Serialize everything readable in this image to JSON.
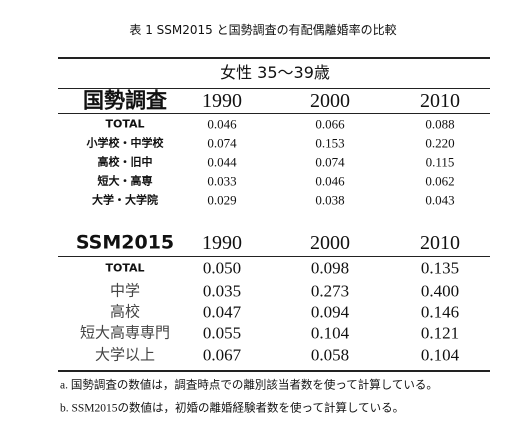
{
  "caption": "表 1 SSM2015 と国勢調査の有配偶離婚率の比較",
  "table": {
    "subheader": "女性 35〜39歳",
    "sections": [
      {
        "title": "国勢調査",
        "columns": [
          "1990",
          "2000",
          "2010"
        ],
        "rows": [
          [
            "TOTAL",
            "0.046",
            "0.066",
            "0.088"
          ],
          [
            "小学校・中学校",
            "0.074",
            "0.153",
            "0.220"
          ],
          [
            "高校・旧中",
            "0.044",
            "0.074",
            "0.115"
          ],
          [
            "短大・高専",
            "0.033",
            "0.046",
            "0.062"
          ],
          [
            "大学・大学院",
            "0.029",
            "0.038",
            "0.043"
          ]
        ]
      },
      {
        "title": "SSM2015",
        "columns": [
          "1990",
          "2000",
          "2010"
        ],
        "rows": [
          [
            "TOTAL",
            "0.050",
            "0.098",
            "0.135"
          ],
          [
            "中学",
            "0.035",
            "0.273",
            "0.400"
          ],
          [
            "高校",
            "0.047",
            "0.094",
            "0.146"
          ],
          [
            "短大高専専門",
            "0.055",
            "0.104",
            "0.121"
          ],
          [
            "大学以上",
            "0.067",
            "0.058",
            "0.104"
          ]
        ]
      }
    ]
  },
  "notes": [
    "a. 国勢調査の数値は，調査時点での離別該当者数を使って計算している。",
    "b. SSM2015の数値は，初婚の離婚経験者数を使って計算している。"
  ]
}
